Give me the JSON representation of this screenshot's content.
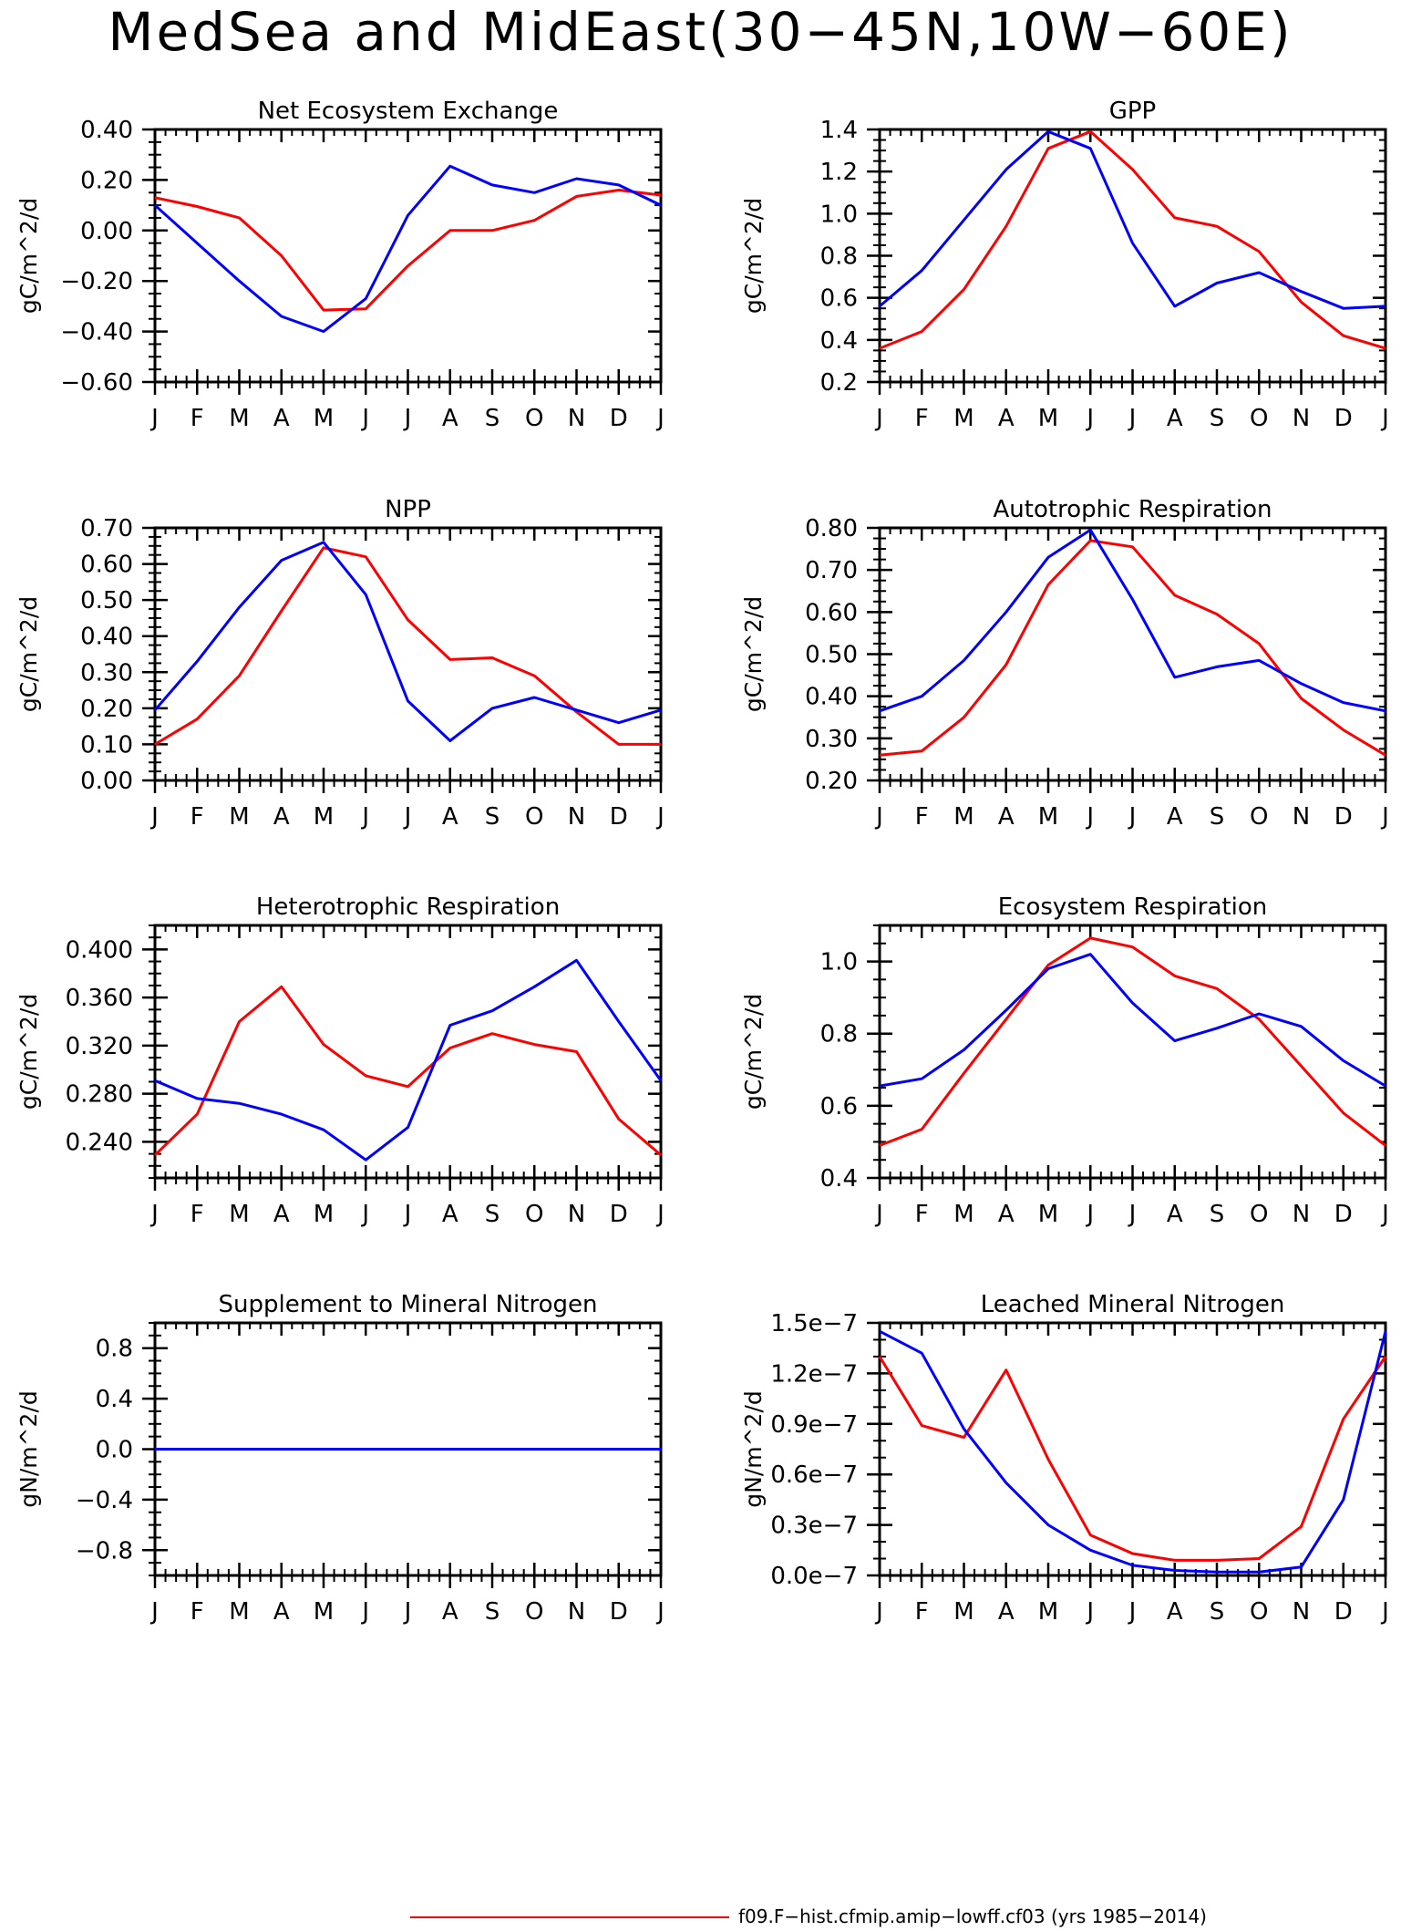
{
  "title": "MedSea and MidEast(30−45N,10W−60E)",
  "legend": [
    {
      "label": "f09.F−hist.cfmip.amip−lowff.cf03 (yrs 1985−2014)",
      "color": "#ff0000"
    }
  ],
  "colors": {
    "red": "#ff0000",
    "blue": "#0000ff"
  },
  "chart_data": [
    {
      "type": "line",
      "title": "Net Ecosystem Exchange",
      "ylabel": "gC/m^2/d",
      "ylim": [
        -0.6,
        0.4
      ],
      "yticks": [
        -0.6,
        -0.4,
        -0.2,
        0.0,
        0.2,
        0.4
      ],
      "yticklabels": [
        "−0.60",
        "−0.40",
        "−0.20",
        "0.00",
        "0.20",
        "0.40"
      ],
      "minor_per_major": 4,
      "categories": [
        "J",
        "F",
        "M",
        "A",
        "M",
        "J",
        "J",
        "A",
        "S",
        "O",
        "N",
        "D",
        "J"
      ],
      "series": [
        {
          "color": "#ff0000",
          "values": [
            0.13,
            0.095,
            0.05,
            -0.1,
            -0.315,
            -0.31,
            -0.14,
            0.0,
            0.0,
            0.04,
            0.135,
            0.16,
            0.14
          ]
        },
        {
          "color": "#0000ff",
          "values": [
            0.1,
            -0.05,
            -0.2,
            -0.34,
            -0.4,
            -0.27,
            0.06,
            0.255,
            0.18,
            0.15,
            0.205,
            0.18,
            0.1
          ]
        }
      ]
    },
    {
      "type": "line",
      "title": "GPP",
      "ylabel": "gC/m^2/d",
      "ylim": [
        0.2,
        1.4
      ],
      "yticks": [
        0.2,
        0.4,
        0.6,
        0.8,
        1.0,
        1.2,
        1.4
      ],
      "yticklabels": [
        "0.2",
        "0.4",
        "0.6",
        "0.8",
        "1.0",
        "1.2",
        "1.4"
      ],
      "minor_per_major": 4,
      "categories": [
        "J",
        "F",
        "M",
        "A",
        "M",
        "J",
        "J",
        "A",
        "S",
        "O",
        "N",
        "D",
        "J"
      ],
      "series": [
        {
          "color": "#ff0000",
          "values": [
            0.36,
            0.44,
            0.64,
            0.94,
            1.31,
            1.39,
            1.21,
            0.98,
            0.94,
            0.82,
            0.58,
            0.42,
            0.36
          ]
        },
        {
          "color": "#0000ff",
          "values": [
            0.56,
            0.73,
            0.97,
            1.21,
            1.39,
            1.31,
            0.86,
            0.56,
            0.67,
            0.72,
            0.63,
            0.55,
            0.56
          ]
        }
      ]
    },
    {
      "type": "line",
      "title": "NPP",
      "ylabel": "gC/m^2/d",
      "ylim": [
        0.0,
        0.7
      ],
      "yticks": [
        0.0,
        0.1,
        0.2,
        0.3,
        0.4,
        0.5,
        0.6,
        0.7
      ],
      "yticklabels": [
        "0.00",
        "0.10",
        "0.20",
        "0.30",
        "0.40",
        "0.50",
        "0.60",
        "0.70"
      ],
      "minor_per_major": 4,
      "categories": [
        "J",
        "F",
        "M",
        "A",
        "M",
        "J",
        "J",
        "A",
        "S",
        "O",
        "N",
        "D",
        "J"
      ],
      "series": [
        {
          "color": "#ff0000",
          "values": [
            0.1,
            0.17,
            0.29,
            0.47,
            0.645,
            0.62,
            0.445,
            0.335,
            0.34,
            0.29,
            0.19,
            0.1,
            0.1
          ]
        },
        {
          "color": "#0000ff",
          "values": [
            0.195,
            0.33,
            0.48,
            0.61,
            0.66,
            0.515,
            0.22,
            0.11,
            0.2,
            0.23,
            0.195,
            0.16,
            0.195
          ]
        }
      ]
    },
    {
      "type": "line",
      "title": "Autotrophic Respiration",
      "ylabel": "gC/m^2/d",
      "ylim": [
        0.2,
        0.8
      ],
      "yticks": [
        0.2,
        0.3,
        0.4,
        0.5,
        0.6,
        0.7,
        0.8
      ],
      "yticklabels": [
        "0.20",
        "0.30",
        "0.40",
        "0.50",
        "0.60",
        "0.70",
        "0.80"
      ],
      "minor_per_major": 4,
      "categories": [
        "J",
        "F",
        "M",
        "A",
        "M",
        "J",
        "J",
        "A",
        "S",
        "O",
        "N",
        "D",
        "J"
      ],
      "series": [
        {
          "color": "#ff0000",
          "values": [
            0.26,
            0.27,
            0.35,
            0.475,
            0.665,
            0.77,
            0.755,
            0.64,
            0.595,
            0.525,
            0.395,
            0.32,
            0.26
          ]
        },
        {
          "color": "#0000ff",
          "values": [
            0.365,
            0.4,
            0.485,
            0.6,
            0.73,
            0.795,
            0.63,
            0.445,
            0.47,
            0.485,
            0.43,
            0.385,
            0.365
          ]
        }
      ]
    },
    {
      "type": "line",
      "title": "Heterotrophic Respiration",
      "ylabel": "gC/m^2/d",
      "ylim": [
        0.21,
        0.42
      ],
      "yticks": [
        0.24,
        0.28,
        0.32,
        0.36,
        0.4
      ],
      "yticklabels": [
        "0.240",
        "0.280",
        "0.320",
        "0.360",
        "0.400"
      ],
      "minor_per_major": 4,
      "categories": [
        "J",
        "F",
        "M",
        "A",
        "M",
        "J",
        "J",
        "A",
        "S",
        "O",
        "N",
        "D",
        "J"
      ],
      "series": [
        {
          "color": "#ff0000",
          "values": [
            0.229,
            0.263,
            0.34,
            0.369,
            0.321,
            0.295,
            0.286,
            0.318,
            0.33,
            0.321,
            0.315,
            0.259,
            0.229
          ]
        },
        {
          "color": "#0000ff",
          "values": [
            0.291,
            0.276,
            0.272,
            0.263,
            0.25,
            0.225,
            0.252,
            0.337,
            0.349,
            0.369,
            0.391,
            0.34,
            0.291
          ]
        }
      ]
    },
    {
      "type": "line",
      "title": "Ecosystem Respiration",
      "ylabel": "gC/m^2/d",
      "ylim": [
        0.4,
        1.1
      ],
      "yticks": [
        0.4,
        0.6,
        0.8,
        1.0
      ],
      "yticklabels": [
        "0.4",
        "0.6",
        "0.8",
        "1.0"
      ],
      "minor_per_major": 4,
      "categories": [
        "J",
        "F",
        "M",
        "A",
        "M",
        "J",
        "J",
        "A",
        "S",
        "O",
        "N",
        "D",
        "J"
      ],
      "series": [
        {
          "color": "#ff0000",
          "values": [
            0.49,
            0.535,
            0.69,
            0.84,
            0.99,
            1.065,
            1.04,
            0.96,
            0.925,
            0.84,
            0.71,
            0.58,
            0.49
          ]
        },
        {
          "color": "#0000ff",
          "values": [
            0.655,
            0.675,
            0.755,
            0.865,
            0.98,
            1.02,
            0.885,
            0.78,
            0.815,
            0.855,
            0.82,
            0.725,
            0.655
          ]
        }
      ]
    },
    {
      "type": "line",
      "title": "Supplement to Mineral Nitrogen",
      "ylabel": "gN/m^2/d",
      "ylim": [
        -1.0,
        1.0
      ],
      "yticks": [
        -0.8,
        -0.4,
        0.0,
        0.4,
        0.8
      ],
      "yticklabels": [
        "−0.8",
        "−0.4",
        "0.0",
        "0.4",
        "0.8"
      ],
      "minor_per_major": 4,
      "categories": [
        "J",
        "F",
        "M",
        "A",
        "M",
        "J",
        "J",
        "A",
        "S",
        "O",
        "N",
        "D",
        "J"
      ],
      "series": [
        {
          "color": "#ff0000",
          "values": [
            0,
            0,
            0,
            0,
            0,
            0,
            0,
            0,
            0,
            0,
            0,
            0,
            0
          ]
        },
        {
          "color": "#0000ff",
          "values": [
            0,
            0,
            0,
            0,
            0,
            0,
            0,
            0,
            0,
            0,
            0,
            0,
            0
          ]
        }
      ]
    },
    {
      "type": "line",
      "title": "Leached Mineral Nitrogen",
      "ylabel": "gN/m^2/d",
      "ylim": [
        0.0,
        1.5e-07
      ],
      "yticks": [
        0.0,
        3e-08,
        6e-08,
        9e-08,
        1.2e-07,
        1.5e-07
      ],
      "yticklabels": [
        "0.0e−7",
        "0.3e−7",
        "0.6e−7",
        "0.9e−7",
        "1.2e−7",
        "1.5e−7"
      ],
      "minor_per_major": 3,
      "categories": [
        "J",
        "F",
        "M",
        "A",
        "M",
        "J",
        "J",
        "A",
        "S",
        "O",
        "N",
        "D",
        "J"
      ],
      "series": [
        {
          "color": "#ff0000",
          "values": [
            1.3e-07,
            8.9e-08,
            8.2e-08,
            1.22e-07,
            6.9e-08,
            2.4e-08,
            1.3e-08,
            9e-09,
            9e-09,
            1e-08,
            2.9e-08,
            9.3e-08,
            1.3e-07
          ]
        },
        {
          "color": "#0000ff",
          "values": [
            1.45e-07,
            1.32e-07,
            8.7e-08,
            5.5e-08,
            3e-08,
            1.5e-08,
            6e-09,
            3e-09,
            2e-09,
            2e-09,
            5e-09,
            4.5e-08,
            1.45e-07
          ]
        }
      ]
    }
  ]
}
